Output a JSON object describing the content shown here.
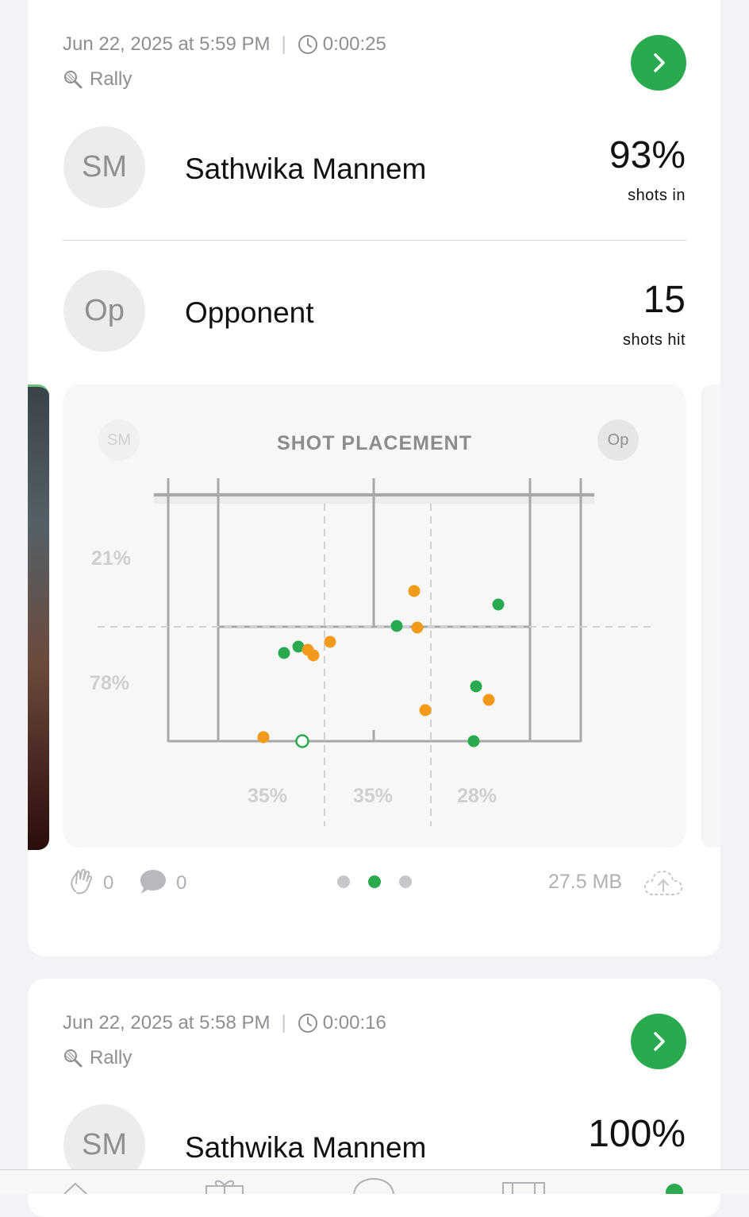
{
  "cards": [
    {
      "date": "Jun 22, 2025 at 5:59 PM",
      "duration": "0:00:25",
      "mode": "Rally",
      "player": {
        "initials": "SM",
        "name": "Sathwika Mannem",
        "stat_value": "93%",
        "stat_label": "shots in"
      },
      "opponent": {
        "initials": "Op",
        "name": "Opponent",
        "stat_value": "15",
        "stat_label": "shots hit"
      },
      "chart": {
        "title": "SHOT PLACEMENT",
        "left_chip": "SM",
        "right_chip": "Op",
        "depth_labels": [
          "21%",
          "78%"
        ],
        "column_labels": [
          "35%",
          "35%",
          "28%"
        ]
      },
      "footer": {
        "claps": "0",
        "comments": "0",
        "file_size": "27.5 MB",
        "pager_pages": 3,
        "pager_active": 1
      }
    },
    {
      "date": "Jun 22, 2025 at 5:58 PM",
      "duration": "0:00:16",
      "mode": "Rally",
      "player": {
        "initials": "SM",
        "name": "Sathwika Mannem",
        "stat_value": "100%"
      }
    }
  ],
  "colors": {
    "accent": "#2aaa4f",
    "shot_player": "#f39a1a",
    "shot_opponent": "#2aaa4f"
  },
  "icons": [
    "chevron-right-icon",
    "clock-icon",
    "racket-icon",
    "clap-icon",
    "comment-icon",
    "cloud-upload-icon"
  ]
}
